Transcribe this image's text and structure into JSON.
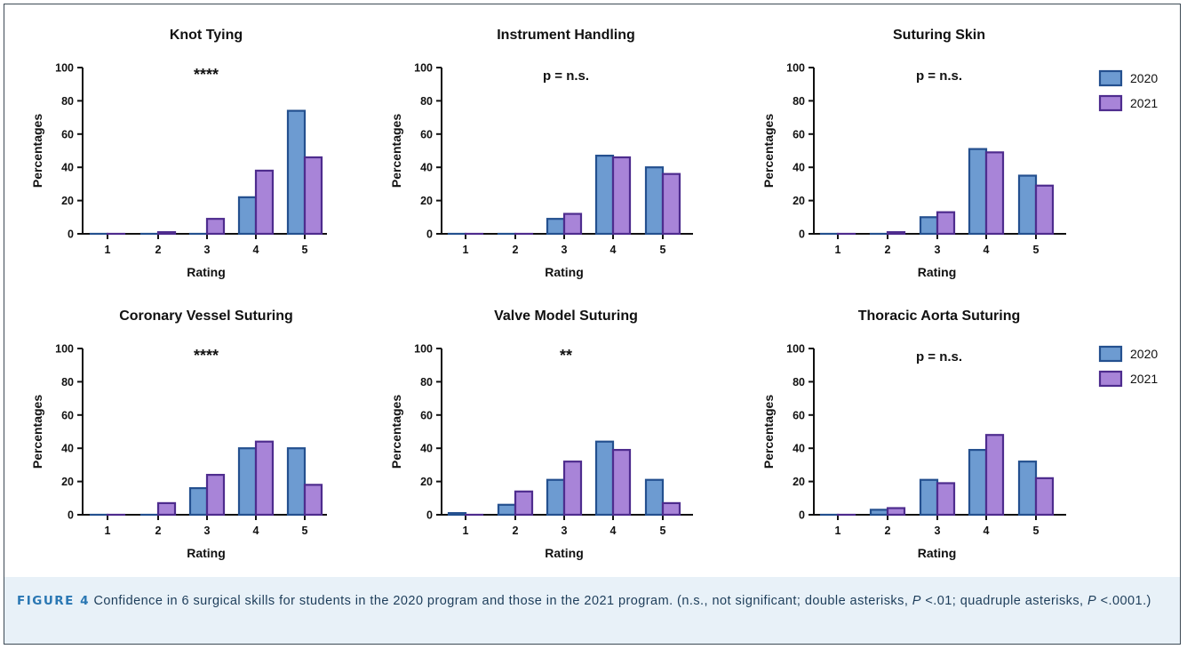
{
  "figure": {
    "label": "FIGURE 4",
    "caption_part1": " Confidence in 6 surgical skills for students in the 2020 program and those in the 2021 program. (n.s., not significant; double asterisks, ",
    "caption_p1": "P",
    "caption_part2": " <.01; quadruple asterisks, ",
    "caption_p2": "P",
    "caption_part3": " <.0001.)"
  },
  "colors": {
    "series_2020": "#6d9bd1",
    "series_2020_edge": "#24508f",
    "series_2021": "#a884d8",
    "series_2021_edge": "#4e2c8e"
  },
  "legend": {
    "items": [
      "2020",
      "2021"
    ],
    "placement": "right"
  },
  "chart_data": [
    {
      "type": "bar",
      "title": "Knot Tying",
      "annotation": "****",
      "xlabel": "Rating",
      "ylabel": "Percentages",
      "ylim": [
        0,
        100
      ],
      "yticks": [
        "0",
        "20",
        "40",
        "60",
        "80",
        "100"
      ],
      "categories": [
        "1",
        "2",
        "3",
        "4",
        "5"
      ],
      "series": [
        {
          "name": "2020",
          "values": [
            0,
            0,
            0,
            22,
            74
          ]
        },
        {
          "name": "2021",
          "values": [
            0,
            1,
            9,
            38,
            46
          ]
        }
      ]
    },
    {
      "type": "bar",
      "title": "Instrument Handling",
      "annotation": "p = n.s.",
      "xlabel": "Rating",
      "ylabel": "Percentages",
      "ylim": [
        0,
        100
      ],
      "yticks": [
        "0",
        "20",
        "40",
        "60",
        "80",
        "100"
      ],
      "categories": [
        "1",
        "2",
        "3",
        "4",
        "5"
      ],
      "series": [
        {
          "name": "2020",
          "values": [
            0,
            0,
            9,
            47,
            40
          ]
        },
        {
          "name": "2021",
          "values": [
            0,
            0,
            12,
            46,
            36
          ]
        }
      ]
    },
    {
      "type": "bar",
      "title": "Suturing Skin",
      "annotation": "p = n.s.",
      "xlabel": "Rating",
      "ylabel": "Percentages",
      "ylim": [
        0,
        100
      ],
      "yticks": [
        "0",
        "20",
        "40",
        "60",
        "80",
        "100"
      ],
      "categories": [
        "1",
        "2",
        "3",
        "4",
        "5"
      ],
      "series": [
        {
          "name": "2020",
          "values": [
            0,
            0,
            10,
            51,
            35
          ]
        },
        {
          "name": "2021",
          "values": [
            0,
            1,
            13,
            49,
            29
          ]
        }
      ]
    },
    {
      "type": "bar",
      "title": "Coronary Vessel Suturing",
      "annotation": "****",
      "xlabel": "Rating",
      "ylabel": "Percentages",
      "ylim": [
        0,
        100
      ],
      "yticks": [
        "0",
        "20",
        "40",
        "60",
        "80",
        "100"
      ],
      "categories": [
        "1",
        "2",
        "3",
        "4",
        "5"
      ],
      "series": [
        {
          "name": "2020",
          "values": [
            0,
            0,
            16,
            40,
            40
          ]
        },
        {
          "name": "2021",
          "values": [
            0,
            7,
            24,
            44,
            18
          ]
        }
      ]
    },
    {
      "type": "bar",
      "title": "Valve Model Suturing",
      "annotation": "**",
      "xlabel": "Rating",
      "ylabel": "Percentages",
      "ylim": [
        0,
        100
      ],
      "yticks": [
        "0",
        "20",
        "40",
        "60",
        "80",
        "100"
      ],
      "categories": [
        "1",
        "2",
        "3",
        "4",
        "5"
      ],
      "series": [
        {
          "name": "2020",
          "values": [
            1,
            6,
            21,
            44,
            21
          ]
        },
        {
          "name": "2021",
          "values": [
            0,
            14,
            32,
            39,
            7
          ]
        }
      ]
    },
    {
      "type": "bar",
      "title": "Thoracic Aorta Suturing",
      "annotation": "p = n.s.",
      "xlabel": "Rating",
      "ylabel": "Percentages",
      "ylim": [
        0,
        100
      ],
      "yticks": [
        "0",
        "20",
        "40",
        "60",
        "80",
        "100"
      ],
      "categories": [
        "1",
        "2",
        "3",
        "4",
        "5"
      ],
      "series": [
        {
          "name": "2020",
          "values": [
            0,
            3,
            21,
            39,
            32
          ]
        },
        {
          "name": "2021",
          "values": [
            0,
            4,
            19,
            48,
            22
          ]
        }
      ]
    }
  ]
}
